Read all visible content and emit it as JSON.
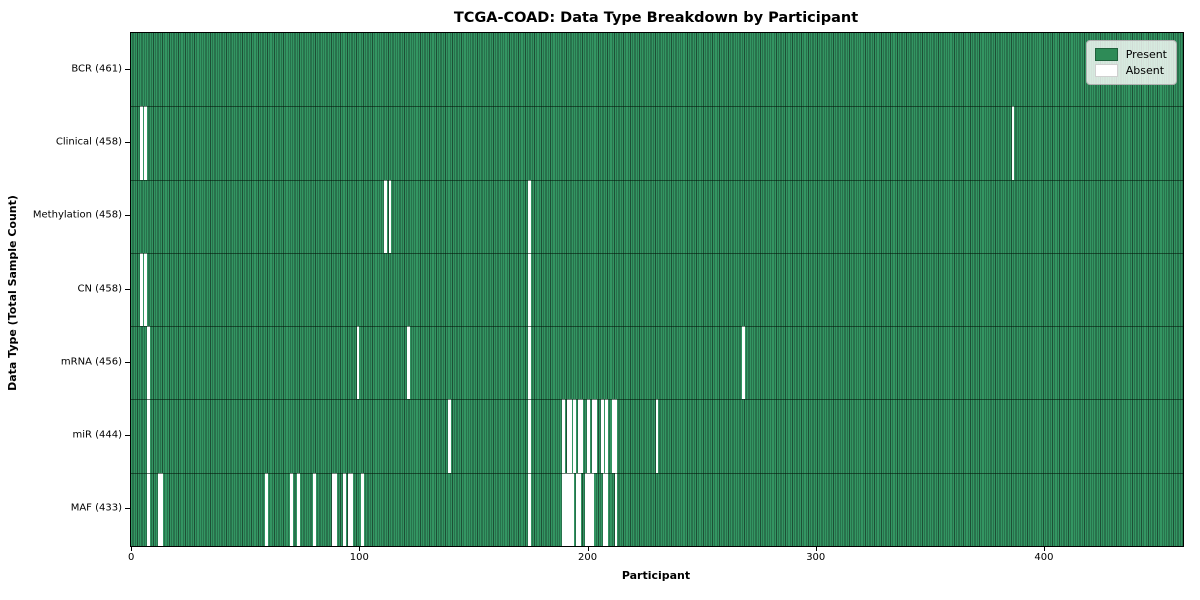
{
  "chart_data": {
    "type": "heatmap",
    "title": "TCGA-COAD: Data Type Breakdown by Participant",
    "xlabel": "Participant",
    "ylabel": "Data Type (Total Sample Count)",
    "n_participants": 461,
    "xlim": [
      -0.5,
      460.5
    ],
    "x_ticks": [
      0,
      100,
      200,
      300,
      400
    ],
    "grid": false,
    "legend_position": "upper right",
    "legend_items": [
      {
        "label": "Present",
        "color": "#2e8b57"
      },
      {
        "label": "Absent",
        "color": "#ffffff"
      }
    ],
    "colors": {
      "present_fill": "#339562",
      "cell_edge": "#1d5036",
      "absent_fill": "#ffffff",
      "row_separator": "rgba(0,20,8,0.55)",
      "plot_border": "#000000"
    },
    "rows": [
      {
        "name": "BCR",
        "label": "BCR (461)",
        "total": 461,
        "absent_participants": []
      },
      {
        "name": "Clinical",
        "label": "Clinical (458)",
        "total": 458,
        "absent_participants": [
          4,
          6,
          386
        ]
      },
      {
        "name": "Methylation",
        "label": "Methylation (458)",
        "total": 458,
        "absent_participants": [
          111,
          113,
          174
        ]
      },
      {
        "name": "CN",
        "label": "CN (458)",
        "total": 458,
        "absent_participants": [
          4,
          6,
          174
        ]
      },
      {
        "name": "mRNA",
        "label": "mRNA (456)",
        "total": 456,
        "absent_participants": [
          7,
          99,
          121,
          174,
          268
        ]
      },
      {
        "name": "miR",
        "label": "miR (444)",
        "total": 444,
        "absent_participants": [
          7,
          139,
          174,
          189,
          191,
          192,
          194,
          196,
          197,
          200,
          202,
          203,
          206,
          208,
          211,
          212,
          230
        ]
      },
      {
        "name": "MAF",
        "label": "MAF (433)",
        "total": 433,
        "absent_participants": [
          7,
          12,
          13,
          59,
          70,
          73,
          80,
          88,
          89,
          93,
          95,
          96,
          101,
          174,
          189,
          190,
          191,
          192,
          193,
          195,
          196,
          199,
          200,
          201,
          202,
          207,
          208,
          212
        ]
      }
    ]
  }
}
